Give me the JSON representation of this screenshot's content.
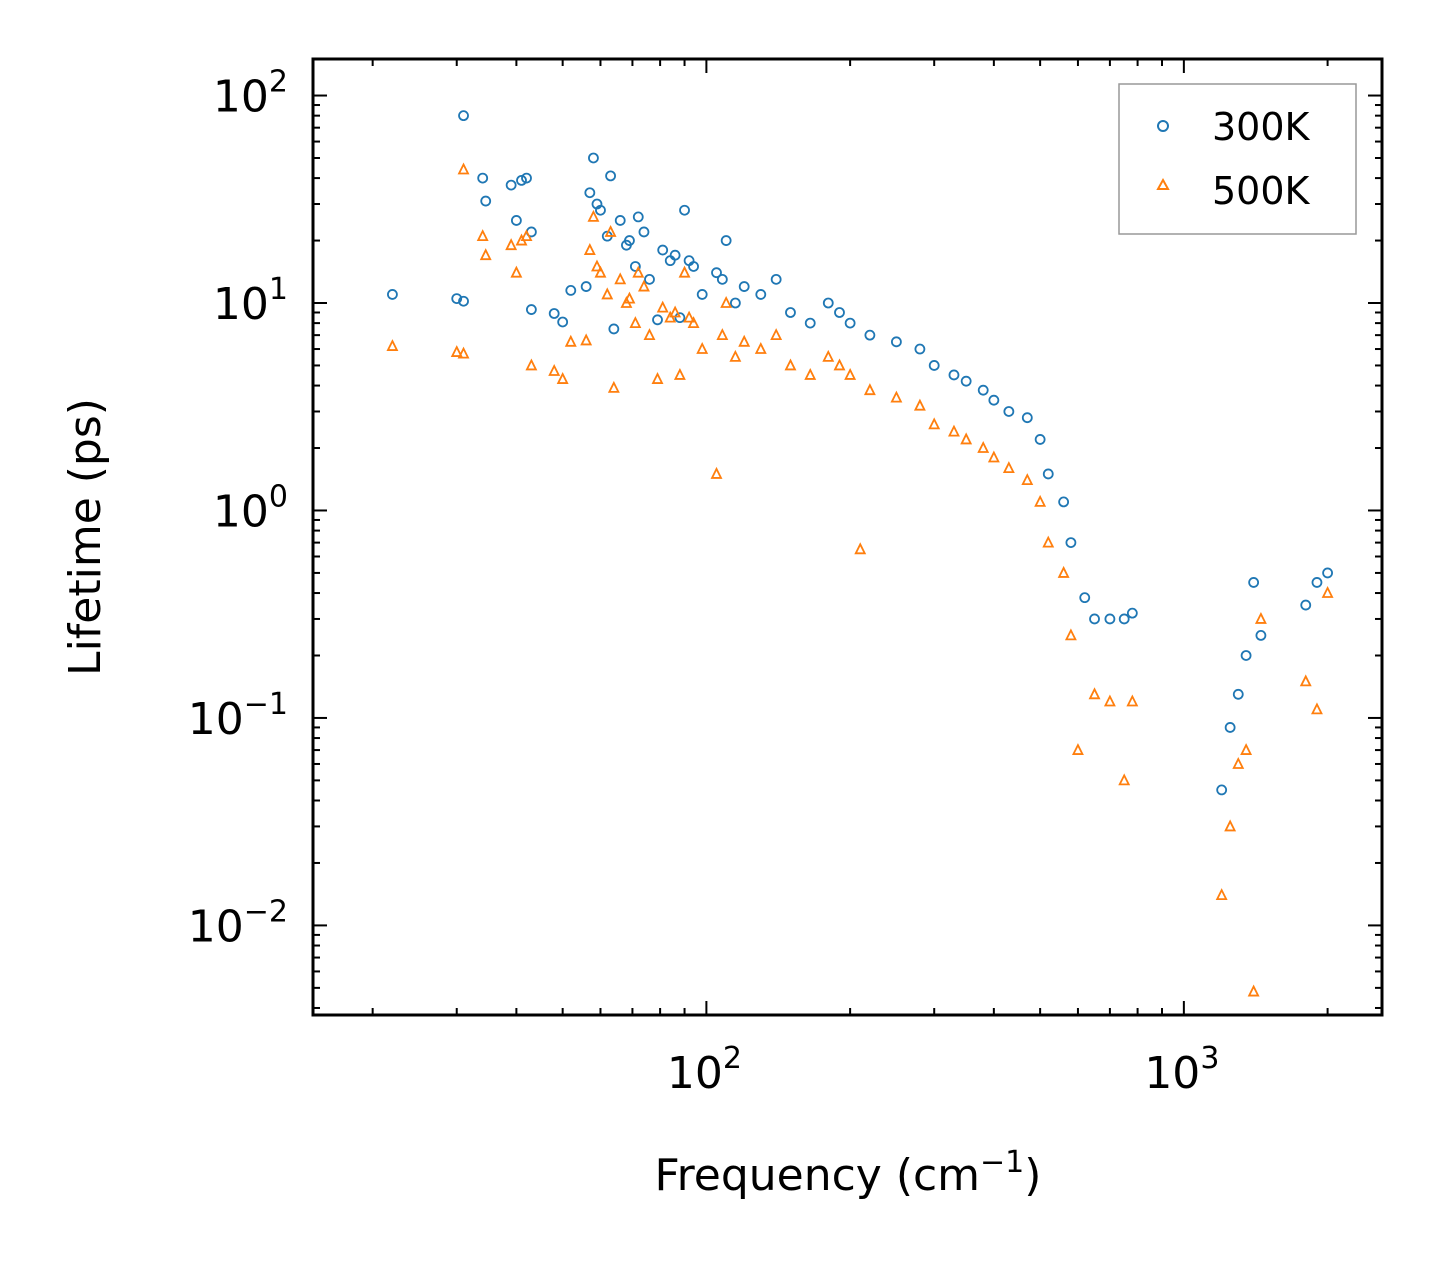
{
  "chart_data": {
    "type": "scatter",
    "title": "",
    "xscale": "log",
    "yscale": "log",
    "xlim": [
      15,
      2600
    ],
    "ylim": [
      0.0037,
      150
    ],
    "xlabel": "Frequency (cm",
    "xlabel_sup": "−1",
    "xlabel_end": ")",
    "ylabel": "Lifetime (ps)",
    "x_ticks": [
      {
        "value": 100,
        "base": "10",
        "exp": "2"
      },
      {
        "value": 1000,
        "base": "10",
        "exp": "3"
      }
    ],
    "y_ticks": [
      {
        "value": 100,
        "base": "10",
        "exp": "2"
      },
      {
        "value": 10,
        "base": "10",
        "exp": "1"
      },
      {
        "value": 1,
        "base": "10",
        "exp": "0"
      },
      {
        "value": 0.1,
        "base": "10",
        "exp": "−1"
      },
      {
        "value": 0.01,
        "base": "10",
        "exp": "−2"
      }
    ],
    "legend_position": "top-right",
    "series": [
      {
        "name": "300K",
        "marker": "circle",
        "color": "#1f77b4",
        "points": [
          [
            22,
            11
          ],
          [
            30,
            10.5
          ],
          [
            31,
            10.2
          ],
          [
            31,
            80
          ],
          [
            34,
            40
          ],
          [
            34.5,
            31
          ],
          [
            39,
            37
          ],
          [
            40,
            25
          ],
          [
            41,
            39
          ],
          [
            42,
            40
          ],
          [
            43,
            22
          ],
          [
            43,
            9.3
          ],
          [
            48,
            8.9
          ],
          [
            50,
            8.1
          ],
          [
            52,
            11.5
          ],
          [
            56,
            12
          ],
          [
            57,
            34
          ],
          [
            58,
            50
          ],
          [
            59,
            30
          ],
          [
            60,
            28
          ],
          [
            62,
            21
          ],
          [
            63,
            41
          ],
          [
            64,
            7.5
          ],
          [
            66,
            25
          ],
          [
            68,
            19
          ],
          [
            69,
            20
          ],
          [
            71,
            15
          ],
          [
            72,
            26
          ],
          [
            74,
            22
          ],
          [
            76,
            13
          ],
          [
            79,
            8.3
          ],
          [
            81,
            18
          ],
          [
            84,
            16
          ],
          [
            86,
            17
          ],
          [
            88,
            8.5
          ],
          [
            90,
            28
          ],
          [
            92,
            16
          ],
          [
            94,
            15
          ],
          [
            98,
            11
          ],
          [
            105,
            14
          ],
          [
            108,
            13
          ],
          [
            110,
            20
          ],
          [
            115,
            10
          ],
          [
            120,
            12
          ],
          [
            130,
            11
          ],
          [
            140,
            13
          ],
          [
            150,
            9
          ],
          [
            165,
            8
          ],
          [
            180,
            10
          ],
          [
            190,
            9
          ],
          [
            200,
            8
          ],
          [
            220,
            7
          ],
          [
            250,
            6.5
          ],
          [
            280,
            6
          ],
          [
            300,
            5
          ],
          [
            330,
            4.5
          ],
          [
            350,
            4.2
          ],
          [
            380,
            3.8
          ],
          [
            400,
            3.4
          ],
          [
            430,
            3
          ],
          [
            470,
            2.8
          ],
          [
            500,
            2.2
          ],
          [
            520,
            1.5
          ],
          [
            560,
            1.1
          ],
          [
            580,
            0.7
          ],
          [
            620,
            0.38
          ],
          [
            650,
            0.3
          ],
          [
            700,
            0.3
          ],
          [
            750,
            0.3
          ],
          [
            780,
            0.32
          ],
          [
            1200,
            0.045
          ],
          [
            1250,
            0.09
          ],
          [
            1300,
            0.13
          ],
          [
            1350,
            0.2
          ],
          [
            1400,
            0.45
          ],
          [
            1450,
            0.25
          ],
          [
            1800,
            0.35
          ],
          [
            1900,
            0.45
          ],
          [
            2000,
            0.5
          ]
        ]
      },
      {
        "name": "500K",
        "marker": "triangle",
        "color": "#ff7f0e",
        "points": [
          [
            22,
            6.2
          ],
          [
            30,
            5.8
          ],
          [
            31,
            5.7
          ],
          [
            31,
            44
          ],
          [
            34,
            21
          ],
          [
            34.5,
            17
          ],
          [
            39,
            19
          ],
          [
            40,
            14
          ],
          [
            41,
            20
          ],
          [
            42,
            21
          ],
          [
            43,
            5
          ],
          [
            48,
            4.7
          ],
          [
            50,
            4.3
          ],
          [
            52,
            6.5
          ],
          [
            56,
            6.6
          ],
          [
            57,
            18
          ],
          [
            58,
            26
          ],
          [
            59,
            15
          ],
          [
            60,
            14
          ],
          [
            62,
            11
          ],
          [
            63,
            22
          ],
          [
            64,
            3.9
          ],
          [
            66,
            13
          ],
          [
            68,
            10
          ],
          [
            69,
            10.5
          ],
          [
            71,
            8
          ],
          [
            72,
            14
          ],
          [
            74,
            12
          ],
          [
            76,
            7
          ],
          [
            79,
            4.3
          ],
          [
            81,
            9.5
          ],
          [
            84,
            8.5
          ],
          [
            86,
            9
          ],
          [
            88,
            4.5
          ],
          [
            90,
            14
          ],
          [
            92,
            8.5
          ],
          [
            94,
            8
          ],
          [
            98,
            6
          ],
          [
            105,
            1.5
          ],
          [
            108,
            7
          ],
          [
            110,
            10
          ],
          [
            115,
            5.5
          ],
          [
            120,
            6.5
          ],
          [
            130,
            6
          ],
          [
            140,
            7
          ],
          [
            150,
            5
          ],
          [
            165,
            4.5
          ],
          [
            180,
            5.5
          ],
          [
            190,
            5
          ],
          [
            200,
            4.5
          ],
          [
            210,
            0.65
          ],
          [
            220,
            3.8
          ],
          [
            250,
            3.5
          ],
          [
            280,
            3.2
          ],
          [
            300,
            2.6
          ],
          [
            330,
            2.4
          ],
          [
            350,
            2.2
          ],
          [
            380,
            2
          ],
          [
            400,
            1.8
          ],
          [
            430,
            1.6
          ],
          [
            470,
            1.4
          ],
          [
            500,
            1.1
          ],
          [
            520,
            0.7
          ],
          [
            560,
            0.5
          ],
          [
            580,
            0.25
          ],
          [
            600,
            0.07
          ],
          [
            650,
            0.13
          ],
          [
            700,
            0.12
          ],
          [
            750,
            0.05
          ],
          [
            780,
            0.12
          ],
          [
            1200,
            0.014
          ],
          [
            1250,
            0.03
          ],
          [
            1300,
            0.06
          ],
          [
            1350,
            0.07
          ],
          [
            1400,
            0.0048
          ],
          [
            1450,
            0.3
          ],
          [
            1800,
            0.15
          ],
          [
            1900,
            0.11
          ],
          [
            2000,
            0.4
          ]
        ]
      }
    ]
  }
}
